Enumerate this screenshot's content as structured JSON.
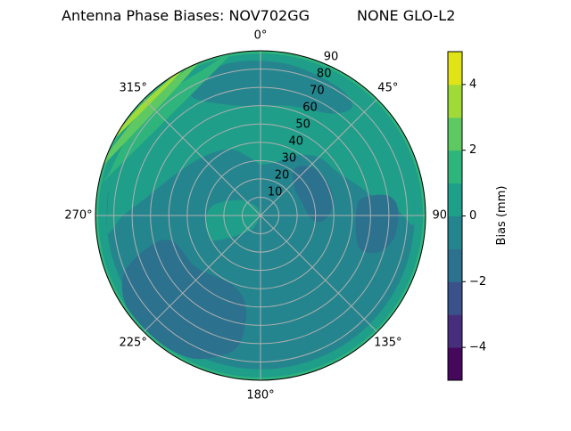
{
  "chart_data": {
    "type": "contour",
    "projection": "polar",
    "title_left": "Antenna Phase Biases: NOV702GG",
    "title_right": "NONE GLO-L2",
    "angular_direction": "clockwise",
    "angular_zero": "top",
    "angular_ticks": [
      "0°",
      "45°",
      "90°",
      "135°",
      "180°",
      "225°",
      "270°",
      "315°"
    ],
    "angular_tick_values": [
      0,
      45,
      90,
      135,
      180,
      225,
      270,
      315
    ],
    "radial_ticks": [
      "10",
      "20",
      "30",
      "40",
      "50",
      "60",
      "70",
      "80",
      "90"
    ],
    "radial_tick_values": [
      10,
      20,
      30,
      40,
      50,
      60,
      70,
      80,
      90
    ],
    "rlim": [
      0,
      90
    ],
    "grid": true,
    "colormap": "viridis",
    "levels": [
      -5,
      -4,
      -3,
      -2,
      -1,
      0,
      1,
      2,
      3,
      4,
      5
    ],
    "level_colors": [
      "#46085c",
      "#472e7c",
      "#3b518b",
      "#2c718e",
      "#25858e",
      "#1f9e89",
      "#2fb47c",
      "#5ec962",
      "#a0da39",
      "#dfe318"
    ],
    "colorbar": {
      "label": "Bias (mm)",
      "ticks": [
        -4,
        -2,
        0,
        2,
        4
      ],
      "tick_labels": [
        "−4",
        "−2",
        "0",
        "2",
        "4"
      ],
      "range": [
        -5,
        5
      ]
    },
    "background_level": -0.5,
    "regions": [
      {
        "level": 0.5,
        "points": [
          [
            265,
            84
          ],
          [
            270,
            75
          ],
          [
            280,
            62
          ],
          [
            295,
            52
          ],
          [
            315,
            45
          ],
          [
            335,
            40
          ],
          [
            350,
            32
          ],
          [
            0,
            28
          ],
          [
            15,
            30
          ],
          [
            30,
            38
          ],
          [
            45,
            45
          ],
          [
            60,
            48
          ],
          [
            72,
            55
          ],
          [
            80,
            62
          ],
          [
            88,
            75
          ],
          [
            92,
            84
          ],
          [
            60,
            88
          ],
          [
            30,
            88
          ],
          [
            0,
            88
          ],
          [
            330,
            88
          ],
          [
            300,
            88
          ]
        ]
      },
      {
        "level": 0.5,
        "ring": [
          84,
          90
        ]
      },
      {
        "level": -0.5,
        "points": [
          [
            330,
            75
          ],
          [
            340,
            65
          ],
          [
            355,
            60
          ],
          [
            15,
            62
          ],
          [
            35,
            68
          ],
          [
            40,
            78
          ],
          [
            30,
            82
          ],
          [
            10,
            84
          ],
          [
            350,
            85
          ],
          [
            335,
            82
          ]
        ]
      },
      {
        "level": -1.5,
        "points": [
          [
            36,
            31
          ],
          [
            43,
            37
          ],
          [
            55,
            40
          ],
          [
            71,
            41
          ],
          [
            85,
            39
          ],
          [
            95,
            34
          ],
          [
            94,
            28
          ],
          [
            76,
            24
          ],
          [
            50,
            24
          ]
        ]
      },
      {
        "level": -1.5,
        "points": [
          [
            84,
            53
          ],
          [
            80,
            58
          ],
          [
            81,
            70
          ],
          [
            87,
            75
          ],
          [
            99,
            74
          ],
          [
            107,
            68
          ],
          [
            109,
            58
          ],
          [
            101,
            53
          ]
        ]
      },
      {
        "level": -1.5,
        "points": [
          [
            247.5,
            80
          ],
          [
            255,
            61
          ],
          [
            253,
            49.5
          ],
          [
            231,
            45
          ],
          [
            202,
            41
          ],
          [
            189,
            51
          ],
          [
            189,
            70
          ],
          [
            195,
            79
          ],
          [
            207,
            87
          ],
          [
            224,
            89.5
          ],
          [
            237,
            88
          ]
        ]
      },
      {
        "level": 0.5,
        "points": [
          [
            267,
            30
          ],
          [
            283,
            26
          ],
          [
            308,
            13.6
          ],
          [
            344,
            3.5
          ],
          [
            208,
            7
          ],
          [
            230,
            17
          ],
          [
            242,
            29
          ],
          [
            253,
            30.5
          ]
        ]
      },
      {
        "level": 1.5,
        "ring": [
          88.5,
          90
        ]
      },
      {
        "level": 1.5,
        "points": [
          [
            280,
            90
          ],
          [
            285,
            86
          ],
          [
            300,
            84
          ],
          [
            320,
            84
          ],
          [
            340,
            86
          ],
          [
            350,
            90
          ]
        ]
      },
      {
        "level": 2.5,
        "points": [
          [
            288,
            90
          ],
          [
            300,
            87.5
          ],
          [
            320,
            87
          ],
          [
            338,
            90
          ]
        ]
      },
      {
        "level": 3.5,
        "points": [
          [
            298,
            90
          ],
          [
            310,
            89
          ],
          [
            325,
            89.2
          ],
          [
            332,
            90
          ]
        ]
      }
    ]
  }
}
